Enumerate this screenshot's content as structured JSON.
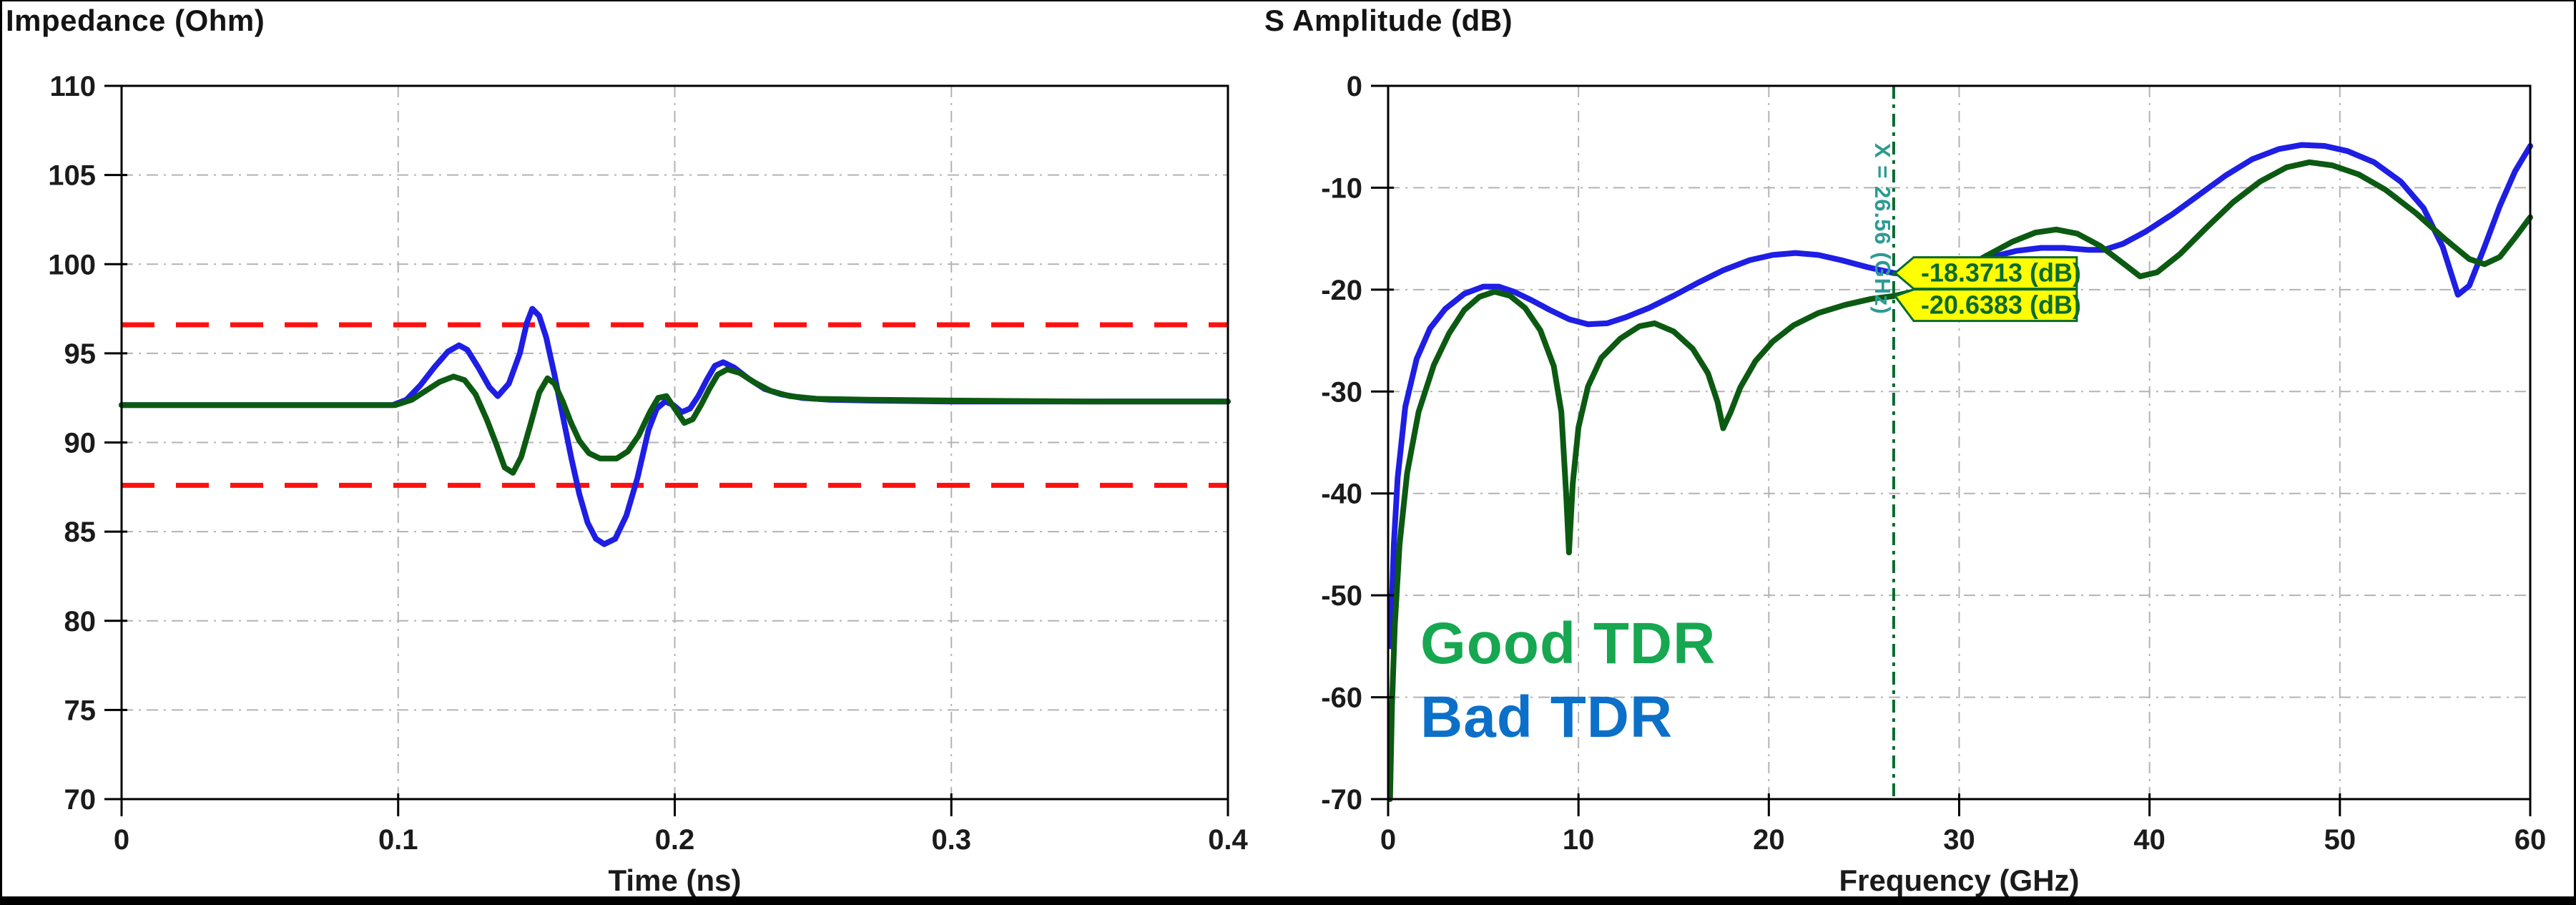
{
  "window": {
    "background": "#ffffff",
    "frame_color": "#000000",
    "grid_color": "#b3b3b3",
    "axis_color": "#000000",
    "tick_label_color": "#1b1b1b"
  },
  "chart_data": [
    {
      "type": "line",
      "title": "Impedance (Ohm)",
      "xlabel": "Time (ns)",
      "ylabel": "",
      "xlim": [
        0,
        0.4
      ],
      "ylim": [
        70,
        110
      ],
      "xticks": [
        0,
        0.1,
        0.2,
        0.3,
        0.4
      ],
      "xtick_labels": [
        "0",
        "0.1",
        "0.2",
        "0.3",
        "0.4"
      ],
      "yticks": [
        70,
        75,
        80,
        85,
        90,
        95,
        100,
        105,
        110
      ],
      "ytick_labels": [
        "70",
        "75",
        "80",
        "85",
        "90",
        "95",
        "100",
        "105",
        "110"
      ],
      "grid": true,
      "limit_lines": {
        "style": "dashed",
        "color": "#ff1010",
        "values": [
          96.6,
          87.6
        ]
      },
      "series": [
        {
          "name": "Bad TDR",
          "color": "#1e1ee4",
          "points": [
            [
              0,
              92.1
            ],
            [
              0.05,
              92.1
            ],
            [
              0.098,
              92.1
            ],
            [
              0.103,
              92.4
            ],
            [
              0.108,
              93.2
            ],
            [
              0.113,
              94.2
            ],
            [
              0.118,
              95.1
            ],
            [
              0.122,
              95.45
            ],
            [
              0.125,
              95.2
            ],
            [
              0.129,
              94.2
            ],
            [
              0.133,
              93.1
            ],
            [
              0.136,
              92.6
            ],
            [
              0.14,
              93.3
            ],
            [
              0.144,
              95.0
            ],
            [
              0.1465,
              96.7
            ],
            [
              0.1485,
              97.5
            ],
            [
              0.151,
              97.1
            ],
            [
              0.1535,
              95.9
            ],
            [
              0.1565,
              93.8
            ],
            [
              0.1595,
              91.5
            ],
            [
              0.1625,
              89.2
            ],
            [
              0.1655,
              87.1
            ],
            [
              0.1685,
              85.5
            ],
            [
              0.1715,
              84.6
            ],
            [
              0.1745,
              84.3
            ],
            [
              0.1785,
              84.6
            ],
            [
              0.1825,
              85.9
            ],
            [
              0.1865,
              88.0
            ],
            [
              0.1905,
              90.7
            ],
            [
              0.1935,
              91.9
            ],
            [
              0.1965,
              92.3
            ],
            [
              0.1995,
              92.1
            ],
            [
              0.2025,
              91.7
            ],
            [
              0.2055,
              91.9
            ],
            [
              0.2085,
              92.6
            ],
            [
              0.2115,
              93.5
            ],
            [
              0.2145,
              94.3
            ],
            [
              0.2175,
              94.5
            ],
            [
              0.2215,
              94.2
            ],
            [
              0.2265,
              93.6
            ],
            [
              0.2325,
              93.0
            ],
            [
              0.2385,
              92.7
            ],
            [
              0.246,
              92.5
            ],
            [
              0.256,
              92.4
            ],
            [
              0.27,
              92.35
            ],
            [
              0.3,
              92.3
            ],
            [
              0.35,
              92.3
            ],
            [
              0.4,
              92.3
            ]
          ]
        },
        {
          "name": "Good TDR",
          "color": "#0c5a12",
          "points": [
            [
              0,
              92.1
            ],
            [
              0.05,
              92.1
            ],
            [
              0.099,
              92.1
            ],
            [
              0.105,
              92.4
            ],
            [
              0.11,
              92.9
            ],
            [
              0.115,
              93.4
            ],
            [
              0.12,
              93.7
            ],
            [
              0.124,
              93.5
            ],
            [
              0.128,
              92.7
            ],
            [
              0.132,
              91.3
            ],
            [
              0.1355,
              89.9
            ],
            [
              0.1385,
              88.6
            ],
            [
              0.1415,
              88.3
            ],
            [
              0.1445,
              89.2
            ],
            [
              0.148,
              91.1
            ],
            [
              0.151,
              92.8
            ],
            [
              0.154,
              93.6
            ],
            [
              0.1565,
              93.3
            ],
            [
              0.1595,
              92.3
            ],
            [
              0.1625,
              91.1
            ],
            [
              0.1655,
              90.1
            ],
            [
              0.169,
              89.4
            ],
            [
              0.173,
              89.1
            ],
            [
              0.179,
              89.1
            ],
            [
              0.183,
              89.5
            ],
            [
              0.187,
              90.4
            ],
            [
              0.191,
              91.7
            ],
            [
              0.194,
              92.5
            ],
            [
              0.197,
              92.6
            ],
            [
              0.2,
              91.9
            ],
            [
              0.2035,
              91.1
            ],
            [
              0.2065,
              91.3
            ],
            [
              0.2095,
              92.1
            ],
            [
              0.2125,
              93.0
            ],
            [
              0.2155,
              93.8
            ],
            [
              0.219,
              94.1
            ],
            [
              0.2235,
              93.9
            ],
            [
              0.2285,
              93.4
            ],
            [
              0.2345,
              92.9
            ],
            [
              0.2415,
              92.6
            ],
            [
              0.251,
              92.45
            ],
            [
              0.27,
              92.4
            ],
            [
              0.3,
              92.35
            ],
            [
              0.35,
              92.3
            ],
            [
              0.4,
              92.3
            ]
          ]
        }
      ]
    },
    {
      "type": "line",
      "title": "S Amplitude (dB)",
      "xlabel": "Frequency (GHz)",
      "ylabel": "",
      "xlim": [
        0,
        60
      ],
      "ylim": [
        -70,
        0
      ],
      "xticks": [
        0,
        10,
        20,
        30,
        40,
        50,
        60
      ],
      "xtick_labels": [
        "0",
        "10",
        "20",
        "30",
        "40",
        "50",
        "60"
      ],
      "yticks": [
        -70,
        -60,
        -50,
        -40,
        -30,
        -20,
        -10,
        0
      ],
      "ytick_labels": [
        "-70",
        "-60",
        "-50",
        "-40",
        "-30",
        "-20",
        "-10",
        "0"
      ],
      "grid": true,
      "marker": {
        "x": 26.56,
        "label": "X = 26.56 (GHz)",
        "line_color": "#0a6b2f",
        "label_color": "#2d9b93",
        "callout_bg": "#ffff00",
        "callout_border": "#0a6b2f",
        "callout_text_color": "#0b6b30",
        "callouts": [
          {
            "text": "-18.3713 (dB)",
            "value": -18.3713,
            "series": "Bad TDR"
          },
          {
            "text": "-20.6383 (dB)",
            "value": -20.6383,
            "series": "Good TDR"
          }
        ]
      },
      "legend": [
        {
          "text": "Good TDR",
          "color": "#17a750"
        },
        {
          "text": "Bad TDR",
          "color": "#0c70c8"
        }
      ],
      "series": [
        {
          "name": "Bad TDR",
          "color": "#1e1ee4",
          "points": [
            [
              0.12,
              -55
            ],
            [
              0.3,
              -45
            ],
            [
              0.5,
              -38.5
            ],
            [
              0.9,
              -31.5
            ],
            [
              1.5,
              -26.8
            ],
            [
              2.2,
              -23.8
            ],
            [
              3,
              -21.9
            ],
            [
              4,
              -20.4
            ],
            [
              5,
              -19.7
            ],
            [
              5.8,
              -19.7
            ],
            [
              6.6,
              -20.2
            ],
            [
              7.5,
              -21.0
            ],
            [
              8.5,
              -22.0
            ],
            [
              9.5,
              -22.9
            ],
            [
              10.5,
              -23.4
            ],
            [
              11.5,
              -23.3
            ],
            [
              12.5,
              -22.7
            ],
            [
              13.7,
              -21.8
            ],
            [
              15,
              -20.6
            ],
            [
              16.3,
              -19.3
            ],
            [
              17.6,
              -18.1
            ],
            [
              19,
              -17.1
            ],
            [
              20.2,
              -16.6
            ],
            [
              21.4,
              -16.4
            ],
            [
              22.6,
              -16.6
            ],
            [
              23.8,
              -17.1
            ],
            [
              25.2,
              -17.8
            ],
            [
              26.56,
              -18.3713
            ],
            [
              27.6,
              -18.5
            ],
            [
              28.6,
              -18.3
            ],
            [
              30,
              -17.7
            ],
            [
              31.5,
              -16.9
            ],
            [
              33,
              -16.2
            ],
            [
              34.3,
              -15.9
            ],
            [
              35.5,
              -15.9
            ],
            [
              36.8,
              -16.1
            ],
            [
              37.6,
              -16.1
            ],
            [
              38.6,
              -15.5
            ],
            [
              39.8,
              -14.3
            ],
            [
              41.2,
              -12.6
            ],
            [
              42.6,
              -10.7
            ],
            [
              44,
              -8.8
            ],
            [
              45.4,
              -7.2
            ],
            [
              46.8,
              -6.2
            ],
            [
              48,
              -5.8
            ],
            [
              49.2,
              -5.9
            ],
            [
              50.4,
              -6.4
            ],
            [
              51.8,
              -7.5
            ],
            [
              53.2,
              -9.4
            ],
            [
              54.4,
              -12.0
            ],
            [
              55.4,
              -15.8
            ],
            [
              56.2,
              -20.5
            ],
            [
              56.8,
              -19.6
            ],
            [
              57.6,
              -15.8
            ],
            [
              58.4,
              -11.8
            ],
            [
              59.2,
              -8.4
            ],
            [
              60,
              -5.9
            ]
          ]
        },
        {
          "name": "Good TDR",
          "color": "#0c5a12",
          "points": [
            [
              0.1,
              -70
            ],
            [
              0.2,
              -61
            ],
            [
              0.35,
              -53
            ],
            [
              0.6,
              -45
            ],
            [
              1,
              -38
            ],
            [
              1.6,
              -32
            ],
            [
              2.4,
              -27.4
            ],
            [
              3.2,
              -24.3
            ],
            [
              4,
              -22.0
            ],
            [
              4.8,
              -20.7
            ],
            [
              5.6,
              -20.2
            ],
            [
              6.4,
              -20.6
            ],
            [
              7.2,
              -21.8
            ],
            [
              8,
              -24.0
            ],
            [
              8.7,
              -27.5
            ],
            [
              9.1,
              -32
            ],
            [
              9.35,
              -40
            ],
            [
              9.5,
              -45.8
            ],
            [
              9.7,
              -39
            ],
            [
              10,
              -33.5
            ],
            [
              10.5,
              -29.5
            ],
            [
              11.2,
              -26.7
            ],
            [
              12.2,
              -24.8
            ],
            [
              13.2,
              -23.6
            ],
            [
              14,
              -23.3
            ],
            [
              15,
              -24.1
            ],
            [
              16,
              -25.8
            ],
            [
              16.8,
              -28.2
            ],
            [
              17.3,
              -31
            ],
            [
              17.6,
              -33.6
            ],
            [
              18,
              -32
            ],
            [
              18.5,
              -29.6
            ],
            [
              19.3,
              -27
            ],
            [
              20.2,
              -25.1
            ],
            [
              21.3,
              -23.5
            ],
            [
              22.6,
              -22.3
            ],
            [
              24,
              -21.5
            ],
            [
              25.4,
              -20.9
            ],
            [
              26.56,
              -20.6383
            ],
            [
              27.8,
              -20.1
            ],
            [
              29,
              -19.2
            ],
            [
              30.2,
              -18.0
            ],
            [
              31.4,
              -16.7
            ],
            [
              32.8,
              -15.3
            ],
            [
              34,
              -14.4
            ],
            [
              35.1,
              -14.1
            ],
            [
              36.2,
              -14.5
            ],
            [
              37.4,
              -15.7
            ],
            [
              38.6,
              -17.4
            ],
            [
              39.5,
              -18.7
            ],
            [
              40.4,
              -18.3
            ],
            [
              41.6,
              -16.5
            ],
            [
              43,
              -13.9
            ],
            [
              44.4,
              -11.4
            ],
            [
              45.8,
              -9.4
            ],
            [
              47.2,
              -8.0
            ],
            [
              48.4,
              -7.5
            ],
            [
              49.6,
              -7.8
            ],
            [
              51,
              -8.7
            ],
            [
              52.4,
              -10.2
            ],
            [
              54,
              -12.5
            ],
            [
              55.5,
              -15.0
            ],
            [
              56.8,
              -17.0
            ],
            [
              57.6,
              -17.5
            ],
            [
              58.4,
              -16.8
            ],
            [
              59.2,
              -14.9
            ],
            [
              60,
              -12.9
            ]
          ]
        }
      ]
    }
  ]
}
